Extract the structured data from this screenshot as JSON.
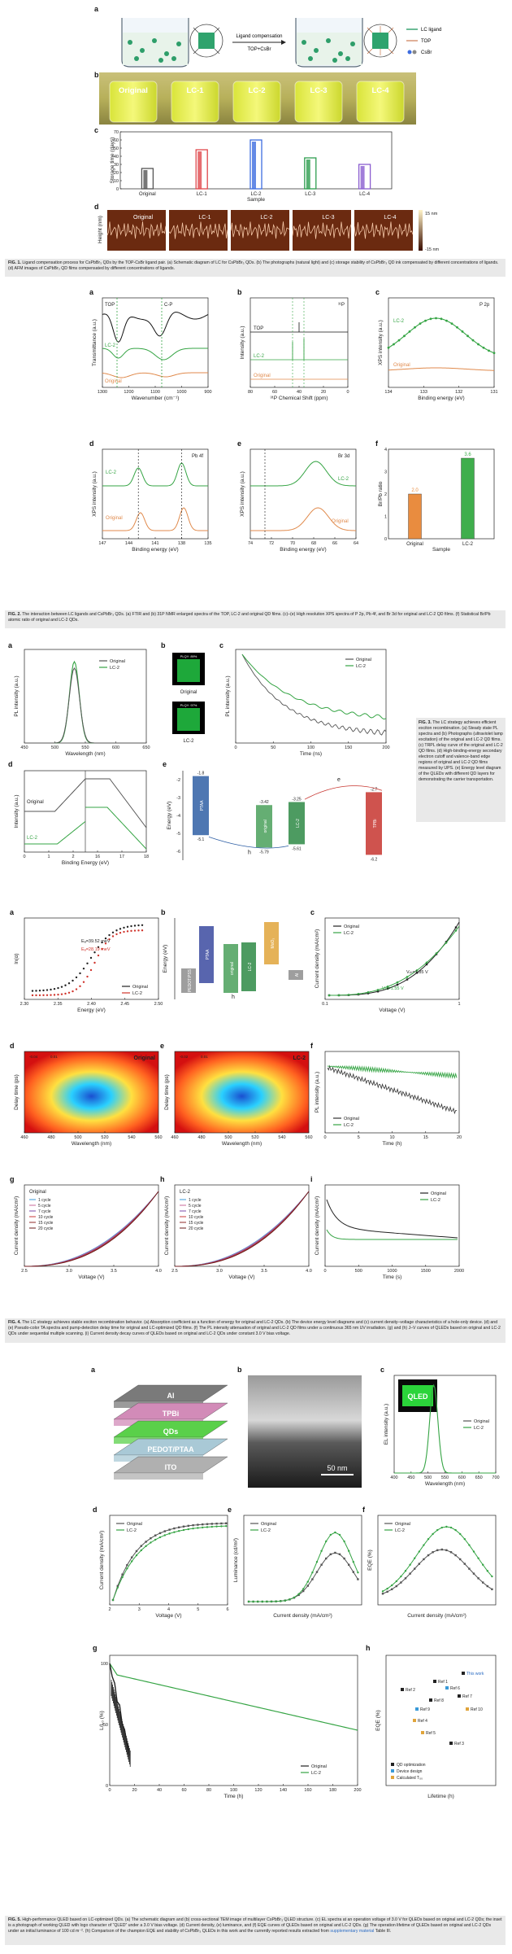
{
  "fig1": {
    "letters": [
      "a",
      "b",
      "c",
      "d"
    ],
    "schematic": {
      "arrow_label_top": "Ligand compensation",
      "arrow_label_bottom": "TOP+CsBr",
      "legend": [
        "LC ligand",
        "TOP",
        "CsBr"
      ]
    },
    "vials": [
      "Original",
      "LC-1",
      "LC-2",
      "LC-3",
      "LC-4"
    ],
    "bar_chart": {
      "type": "bar",
      "categories": [
        "Original",
        "LC-1",
        "LC-2",
        "LC-3",
        "LC-4"
      ],
      "values": [
        25,
        48,
        60,
        38,
        30
      ],
      "colors": [
        "#555555",
        "#e0484c",
        "#3d6de0",
        "#2e9e4f",
        "#8a5dcf"
      ],
      "xlabel": "Sample",
      "ylabel": "Storage time (days)",
      "yticks": [
        0,
        10,
        20,
        30,
        40,
        50,
        60,
        70
      ],
      "ylim": [
        0,
        70
      ]
    },
    "afm": {
      "labels": [
        "Original",
        "LC-1",
        "LC-2",
        "LC-3",
        "LC-4"
      ],
      "ylabel": "Height (nm)",
      "scale_top": "15 nm",
      "scale_bottom": "-15 nm"
    },
    "caption_title": "FIG. 1.",
    "caption": "Ligand compensation process for CsPbBr₃ QDs by the TOP-CsBr ligand pair. (a) Schematic diagram of LC for CsPbBr₃ QDs. (b) The photographs (natural light) and (c) storage stability of CsPbBr₃ QD ink compensated by different concentrations of ligands. (d) AFM images of CsPbBr₃ QD films compensated by different concentrations of ligands."
  },
  "fig2": {
    "a": {
      "ylabel": "Transmittance (a.u.)",
      "xlabel": "Wavenumber (cm⁻¹)",
      "xticks": [
        "1300",
        "1200",
        "1100",
        "1000",
        "900"
      ],
      "labels": [
        "TOP",
        "C-P",
        "LC-2",
        "Original"
      ]
    },
    "b": {
      "ylabel": "Intensity (a.u.)",
      "xlabel": "³¹P Chemical Shift (ppm)",
      "xticks": [
        "80",
        "60",
        "40",
        "20",
        "0"
      ],
      "labels": [
        "TOP",
        "LC-2",
        "Original",
        "³¹P"
      ]
    },
    "c": {
      "ylabel": "XPS intensity (a.u.)",
      "xlabel": "Binding energy (eV)",
      "xticks": [
        "134",
        "133",
        "132",
        "131"
      ],
      "labels": [
        "LC-2",
        "Original",
        "P 2p"
      ]
    },
    "d": {
      "ylabel": "XPS intensity (a.u.)",
      "xlabel": "Binding energy (eV)",
      "xticks": [
        "147",
        "144",
        "141",
        "138",
        "135"
      ],
      "labels": [
        "LC-2",
        "Original",
        "Pb 4f"
      ]
    },
    "e": {
      "ylabel": "XPS intensity (a.u.)",
      "xlabel": "Binding energy (eV)",
      "xticks": [
        "74",
        "72",
        "70",
        "68",
        "66",
        "64"
      ],
      "labels": [
        "LC-2",
        "Original",
        "Br 3d"
      ]
    },
    "f": {
      "chart": {
        "type": "bar",
        "categories": [
          "Original",
          "LC-2"
        ],
        "values": [
          2.0,
          3.6
        ],
        "value_labels": [
          "2.0",
          "3.6"
        ],
        "colors": [
          "#e98c3f",
          "#3fae4c"
        ],
        "xlabel": "Sample",
        "ylabel": "Br/Pb ratio",
        "yticks": [
          0,
          1,
          2,
          3,
          4
        ],
        "ylim": [
          0,
          4
        ]
      }
    },
    "caption_title": "FIG. 2.",
    "caption": "The interaction between LC ligands and CsPbBr₃ QDs. (a) FTIR and (b) 31P NMR enlarged spectra of the TOP, LC-2 and original QD films. (c)–(e) High resolution XPS spectra of P 2p, Pb 4f, and Br 3d for original and LC-2 QD films. (f) Statistical Br/Pb atomic ratio of original and LC-2 QDs."
  },
  "fig3": {
    "a": {
      "ylabel": "PL intensity (a.u.)",
      "xlabel": "Wavelength (nm)",
      "xticks": [
        "450",
        "500",
        "550",
        "600",
        "650"
      ],
      "legend": [
        "Original",
        "LC-2"
      ]
    },
    "b": {
      "photos": [
        "Original",
        "LC-2"
      ],
      "tags": [
        "PLQY: 89%",
        "PLQY: 97%"
      ]
    },
    "c": {
      "ylabel": "PL intensity (a.u.)",
      "xlabel": "Time (ns)",
      "xticks": [
        "0",
        "50",
        "100",
        "150",
        "200"
      ],
      "legend": [
        "Original",
        "LC-2"
      ]
    },
    "d": {
      "ylabel": "Intensity (a.u.)",
      "xlabel": "Binding Energy (eV)",
      "xticks": [
        "0",
        "1",
        "2",
        "16",
        "17",
        "18"
      ],
      "labels": [
        "Original",
        "LC-2"
      ]
    },
    "e": {
      "ylabel": "Energy (eV)",
      "yticks": [
        "-2",
        "-3",
        "-4",
        "-5",
        "-6"
      ],
      "levels": [
        "-1.8",
        "-5.1",
        "-3.42",
        "-5.79",
        "-3.25",
        "-5.61",
        "-2.7",
        "-6.2"
      ],
      "layers": [
        "PTAA",
        "original",
        "LC-2",
        "TPBi"
      ],
      "e": "e",
      "h": "h"
    },
    "caption_title": "FIG. 3.",
    "caption": "The LC strategy achieves efficient exciton recombination. (a) Steady state PL spectra and (b) Photographs (ultraviolet lamp excitation) of the original and LC-2 QD films. (c) TRPL delay curve of the original and LC-2 QD films. (d) High-binding-energy secondary electron cutoff and valence-band edge regions of original and LC-2 QD films measured by UPS. (e) Energy level diagram of the QLEDs with different QD layers for demonstrating the carrier transportation."
  },
  "fig4": {
    "a": {
      "ylabel": "ln(α)",
      "xlabel": "Energy (eV)",
      "xticks": [
        "2.30",
        "2.35",
        "2.40",
        "2.45",
        "2.50"
      ],
      "annotations": [
        "Eₐ=39.52 meV",
        "Eₐ=28.19 meV"
      ],
      "legend": [
        "Original",
        "LC-2"
      ]
    },
    "b": {
      "ylabel": "Energy (eV)",
      "layers": [
        "PEDOT:PSS",
        "PTAA",
        "original",
        "LC-2",
        "MoO₃",
        "Al"
      ],
      "levels": [
        "-2.2",
        "-5.1",
        "-3.42",
        "-3.25",
        "-5.79",
        "-5.61",
        "-1.8",
        "-5.3"
      ]
    },
    "c": {
      "ylabel": "Current density (mA/cm²)",
      "xlabel": "Voltage (V)",
      "xticks": [
        "0.1",
        "1"
      ],
      "annotations": [
        "Vₜₕ=1.85 V",
        "Vₜₕ=1.55 V"
      ],
      "legend": [
        "Original",
        "LC-2"
      ]
    },
    "d": {
      "ylabel": "Delay time (ps)",
      "xlabel": "Wavelength (nm)",
      "xticks": [
        "460",
        "480",
        "500",
        "520",
        "540",
        "560"
      ],
      "title": "Original",
      "cbar": [
        "-0.04",
        "0.01"
      ]
    },
    "e": {
      "ylabel": "Delay time (ps)",
      "xlabel": "Wavelength (nm)",
      "xticks": [
        "460",
        "480",
        "500",
        "520",
        "540",
        "560"
      ],
      "title": "LC-2",
      "cbar": [
        "-0.02",
        "0.01"
      ]
    },
    "f": {
      "ylabel": "PL intensity (a.u.)",
      "xlabel": "Time (h)",
      "xticks": [
        "0",
        "5",
        "10",
        "15",
        "20"
      ],
      "legend": [
        "Original",
        "LC-2"
      ]
    },
    "g": {
      "ylabel": "Current density (mA/cm²)",
      "xlabel": "Voltage (V)",
      "xticks": [
        "2.5",
        "3.0",
        "3.5",
        "4.0"
      ],
      "title": "Original",
      "legend": [
        "1 cycle",
        "5 cycle",
        "7 cycle",
        "10 cycle",
        "15 cycle",
        "20 cycle"
      ]
    },
    "h": {
      "ylabel": "Current density (mA/cm²)",
      "xlabel": "Voltage (V)",
      "xticks": [
        "2.5",
        "3.0",
        "3.5",
        "4.0"
      ],
      "title": "LC-2",
      "legend": [
        "1 cycle",
        "5 cycle",
        "7 cycle",
        "10 cycle",
        "15 cycle",
        "20 cycle"
      ]
    },
    "i": {
      "ylabel": "Current density (mA/cm²)",
      "xlabel": "Time (s)",
      "xticks": [
        "0",
        "500",
        "1000",
        "1500",
        "2000"
      ],
      "legend": [
        "Original",
        "LC-2"
      ]
    },
    "caption_title": "FIG. 4.",
    "caption": "The LC strategy achieves stable exciton recombination behavior. (a) Absorption coefficient as a function of energy for original and LC-2 QDs. (b) The device energy level diagrams and (c) current density–voltage characteristics of a hole-only device. (d) and (e) Pseudo-color TA spectra and pump-detection delay time for original and LC-optimized QD films. (f) The PL intensity attenuation of original and LC-2 QD films under a continuous 365 nm UV irradiation. (g) and (h) J–V curves of QLEDs based on original and LC-2 QDs under sequential multiple scanning. (i) Current density decay curves of QLEDs based on original and LC-2 QDs under constant 3.0 V bias voltage."
  },
  "fig5": {
    "a": {
      "layers": [
        "Al",
        "TPBi",
        "QDs",
        "PEDOT/PTAA",
        "ITO"
      ]
    },
    "b": {
      "scale": "50 nm"
    },
    "c": {
      "ylabel": "EL intensity (a.u.)",
      "xlabel": "Wavelength (nm)",
      "xticks": [
        "400",
        "450",
        "500",
        "550",
        "600",
        "650",
        "700"
      ],
      "inset": "QLED",
      "legend": [
        "Original",
        "LC-2"
      ]
    },
    "d": {
      "ylabel": "Current density (mA/cm²)",
      "xlabel": "Voltage (V)",
      "xticks": [
        "2",
        "3",
        "4",
        "5",
        "6"
      ],
      "legend": [
        "Original",
        "LC-2"
      ]
    },
    "e": {
      "ylabel": "Luminance (cd/m²)",
      "xlabel": "Current density (mA/cm²)",
      "legend": [
        "Original",
        "LC-2"
      ]
    },
    "f": {
      "ylabel": "EQE (%)",
      "xlabel": "Current density (mA/cm²)",
      "legend": [
        "Original",
        "LC-2"
      ]
    },
    "g": {
      "ylabel": "L/L₀ (%)",
      "xlabel": "Time (h)",
      "xticks": [
        "0",
        "20",
        "40",
        "60",
        "80",
        "100",
        "120",
        "140",
        "160",
        "180",
        "200"
      ],
      "yticks": [
        "0",
        "50",
        "100"
      ],
      "legend": [
        "Original",
        "LC-2"
      ]
    },
    "h": {
      "ylabel": "EQE (%)",
      "xlabel": "Lifetime (h)",
      "this_work": "This work",
      "refs": [
        "Ref 1",
        "Ref 2",
        "Ref 3",
        "Ref 4",
        "Ref 5",
        "Ref 6",
        "Ref 7",
        "Ref 8",
        "Ref 9",
        "Ref 10"
      ],
      "legend": [
        "QD optimization",
        "Device design",
        "Calculated T₅₀"
      ]
    },
    "caption_title": "FIG. 5.",
    "caption": "High-performance QLED based on LC-optimized QDs. (a) The schematic diagram and (b) cross-sectional TEM image of multilayer CsPbBr₃ QLED structure. (c) EL spectra at an operation voltage of 3.0 V for QLEDs based on original and LC-2 QDs; the inset is a photograph of working QLED with logo character of “QLED” under a 3.0 V bias voltage. (d) Current density, (e) luminance, and (f) EQE curves of QLEDs based on original and LC-2 QDs. (g) The operation lifetime of QLEDs based on original and LC-2 QDs under an initial luminance of 100 cd m⁻². (h) Comparison of the champion EQE and stability of CsPbBr₃ QLEDs in this work and the currently reported results extracted from",
    "caption_link": "supplementary material",
    "caption_tail": "Table III."
  }
}
